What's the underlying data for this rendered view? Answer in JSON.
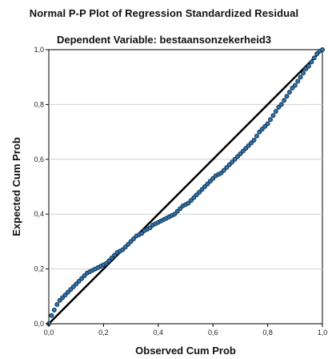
{
  "chart_data": {
    "type": "scatter",
    "title": "Normal P-P Plot of Regression Standardized Residual",
    "subtitle": "Dependent Variable: bestaansonzekerheid3",
    "xlabel": "Observed Cum Prob",
    "ylabel": "Expected Cum Prob",
    "xlim": [
      0,
      1
    ],
    "ylim": [
      0,
      1
    ],
    "xticks": [
      "0,0",
      "0,2",
      "0,4",
      "0,6",
      "0,8",
      "1,0"
    ],
    "yticks": [
      "0,0",
      "0,2",
      "0,4",
      "0,6",
      "0,8",
      "1,0"
    ],
    "grid": "horizontal",
    "reference_line": [
      [
        0,
        0
      ],
      [
        1,
        1
      ]
    ],
    "colors": {
      "points": "#2f78b4",
      "point_edge": "#1a3d5c",
      "reference": "#000000",
      "grid": "#d0d0d0"
    },
    "series": [
      {
        "points": [
          [
            0.0,
            0.0
          ],
          [
            0.01,
            0.03
          ],
          [
            0.02,
            0.05
          ],
          [
            0.03,
            0.07
          ],
          [
            0.04,
            0.085
          ],
          [
            0.05,
            0.095
          ],
          [
            0.06,
            0.105
          ],
          [
            0.07,
            0.115
          ],
          [
            0.08,
            0.125
          ],
          [
            0.09,
            0.135
          ],
          [
            0.1,
            0.145
          ],
          [
            0.11,
            0.155
          ],
          [
            0.12,
            0.165
          ],
          [
            0.13,
            0.175
          ],
          [
            0.14,
            0.185
          ],
          [
            0.15,
            0.19
          ],
          [
            0.16,
            0.195
          ],
          [
            0.17,
            0.2
          ],
          [
            0.18,
            0.205
          ],
          [
            0.19,
            0.21
          ],
          [
            0.2,
            0.215
          ],
          [
            0.21,
            0.22
          ],
          [
            0.22,
            0.23
          ],
          [
            0.23,
            0.24
          ],
          [
            0.24,
            0.25
          ],
          [
            0.25,
            0.26
          ],
          [
            0.26,
            0.265
          ],
          [
            0.27,
            0.27
          ],
          [
            0.28,
            0.28
          ],
          [
            0.29,
            0.29
          ],
          [
            0.3,
            0.3
          ],
          [
            0.31,
            0.31
          ],
          [
            0.32,
            0.32
          ],
          [
            0.33,
            0.325
          ],
          [
            0.34,
            0.33
          ],
          [
            0.35,
            0.34
          ],
          [
            0.36,
            0.345
          ],
          [
            0.37,
            0.35
          ],
          [
            0.38,
            0.36
          ],
          [
            0.39,
            0.365
          ],
          [
            0.4,
            0.37
          ],
          [
            0.41,
            0.375
          ],
          [
            0.42,
            0.38
          ],
          [
            0.43,
            0.385
          ],
          [
            0.44,
            0.39
          ],
          [
            0.45,
            0.395
          ],
          [
            0.46,
            0.4
          ],
          [
            0.47,
            0.41
          ],
          [
            0.48,
            0.42
          ],
          [
            0.49,
            0.43
          ],
          [
            0.5,
            0.435
          ],
          [
            0.51,
            0.44
          ],
          [
            0.52,
            0.45
          ],
          [
            0.53,
            0.46
          ],
          [
            0.54,
            0.47
          ],
          [
            0.55,
            0.48
          ],
          [
            0.56,
            0.49
          ],
          [
            0.57,
            0.5
          ],
          [
            0.58,
            0.51
          ],
          [
            0.59,
            0.52
          ],
          [
            0.6,
            0.53
          ],
          [
            0.61,
            0.54
          ],
          [
            0.62,
            0.545
          ],
          [
            0.63,
            0.55
          ],
          [
            0.64,
            0.56
          ],
          [
            0.65,
            0.57
          ],
          [
            0.66,
            0.58
          ],
          [
            0.67,
            0.59
          ],
          [
            0.68,
            0.6
          ],
          [
            0.69,
            0.61
          ],
          [
            0.7,
            0.62
          ],
          [
            0.71,
            0.63
          ],
          [
            0.72,
            0.64
          ],
          [
            0.73,
            0.65
          ],
          [
            0.74,
            0.66
          ],
          [
            0.75,
            0.67
          ],
          [
            0.76,
            0.685
          ],
          [
            0.77,
            0.7
          ],
          [
            0.78,
            0.71
          ],
          [
            0.79,
            0.72
          ],
          [
            0.8,
            0.73
          ],
          [
            0.81,
            0.745
          ],
          [
            0.82,
            0.76
          ],
          [
            0.83,
            0.775
          ],
          [
            0.84,
            0.79
          ],
          [
            0.85,
            0.8
          ],
          [
            0.86,
            0.815
          ],
          [
            0.87,
            0.83
          ],
          [
            0.88,
            0.845
          ],
          [
            0.89,
            0.86
          ],
          [
            0.9,
            0.87
          ],
          [
            0.91,
            0.885
          ],
          [
            0.92,
            0.9
          ],
          [
            0.93,
            0.915
          ],
          [
            0.94,
            0.93
          ],
          [
            0.95,
            0.94
          ],
          [
            0.96,
            0.955
          ],
          [
            0.97,
            0.97
          ],
          [
            0.98,
            0.985
          ],
          [
            0.99,
            0.995
          ],
          [
            1.0,
            1.0
          ]
        ]
      }
    ]
  }
}
